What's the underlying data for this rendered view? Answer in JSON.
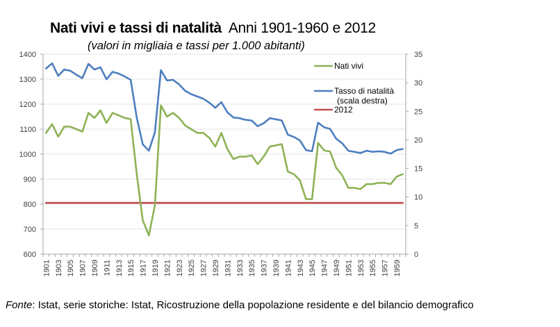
{
  "title": {
    "bold": "Nati vivi e tassi di natalità",
    "regular": "Anni 1901-1960 e 2012"
  },
  "subtitle": "(valori in migliaia e tassi per 1.000 abitanti)",
  "source": {
    "label": "Fonte",
    "text": ": Istat, serie storiche: Istat, Ricostruzione della popolazione residente e del bilancio demografico"
  },
  "chart_data": {
    "type": "line",
    "title": "Nati vivi e tassi di natalità Anni 1901-1960 e 2012",
    "subtitle": "(valori in migliaia e tassi per 1.000 abitanti)",
    "xlabel": "",
    "ylabel": "",
    "y2label": "",
    "ylim": [
      600,
      1400
    ],
    "y2lim": [
      0,
      35
    ],
    "yticks": [
      600,
      700,
      800,
      900,
      1000,
      1100,
      1200,
      1300,
      1400
    ],
    "y2ticks": [
      0,
      5,
      10,
      15,
      20,
      25,
      30,
      35
    ],
    "grid": "horizontal",
    "legend_position": "top-right",
    "x": [
      1901,
      1902,
      1903,
      1904,
      1905,
      1906,
      1907,
      1908,
      1909,
      1910,
      1911,
      1912,
      1913,
      1914,
      1915,
      1916,
      1917,
      1918,
      1919,
      1920,
      1921,
      1922,
      1923,
      1924,
      1925,
      1926,
      1927,
      1928,
      1929,
      1930,
      1931,
      1932,
      1933,
      1934,
      1935,
      1936,
      1937,
      1938,
      1939,
      1940,
      1941,
      1942,
      1943,
      1944,
      1945,
      1946,
      1947,
      1948,
      1949,
      1950,
      1951,
      1952,
      1953,
      1954,
      1955,
      1956,
      1957,
      1958,
      1959,
      1960
    ],
    "xtick_labels": [
      "1901",
      "1903",
      "1905",
      "1907",
      "1909",
      "1911",
      "1913",
      "1915",
      "1917",
      "1919",
      "1921",
      "1923",
      "1925",
      "1927",
      "1929",
      "1931",
      "1933",
      "1935",
      "1937",
      "1939",
      "1941",
      "1943",
      "1945",
      "1947",
      "1949",
      "1951",
      "1953",
      "1955",
      "1957",
      "1959"
    ],
    "series": [
      {
        "name": "Nati vivi",
        "axis": "left",
        "color": "#8db255",
        "values": [
          1085,
          1120,
          1070,
          1110,
          1110,
          1100,
          1090,
          1165,
          1145,
          1175,
          1125,
          1165,
          1155,
          1145,
          1140,
          920,
          735,
          675,
          795,
          1195,
          1150,
          1165,
          1145,
          1115,
          1100,
          1085,
          1085,
          1065,
          1030,
          1085,
          1020,
          980,
          990,
          990,
          995,
          960,
          990,
          1030,
          1035,
          1040,
          930,
          920,
          895,
          820,
          820,
          1045,
          1015,
          1010,
          945,
          915,
          865,
          865,
          860,
          880,
          880,
          885,
          885,
          880,
          910,
          920
        ]
      },
      {
        "name": "Tasso di natalità (scala destra)",
        "axis": "right",
        "color": "#4d7ebf",
        "values": [
          32.5,
          33.4,
          31.2,
          32.3,
          32.1,
          31.4,
          30.8,
          33.3,
          32.3,
          32.7,
          30.6,
          31.9,
          31.6,
          31.1,
          30.5,
          23.9,
          19.2,
          18.1,
          21.3,
          32.2,
          30.4,
          30.5,
          29.7,
          28.6,
          28.0,
          27.6,
          27.2,
          26.5,
          25.6,
          26.6,
          24.8,
          23.9,
          23.8,
          23.5,
          23.4,
          22.4,
          22.9,
          23.8,
          23.6,
          23.4,
          20.9,
          20.5,
          19.9,
          18.2,
          18.0,
          23.0,
          22.2,
          21.9,
          20.2,
          19.4,
          18.1,
          17.9,
          17.7,
          18.1,
          17.9,
          18.0,
          17.9,
          17.6,
          18.2,
          18.4
        ]
      },
      {
        "name": "2012",
        "axis": "left",
        "color": "#c0504d",
        "values": [
          805,
          805,
          805,
          805,
          805,
          805,
          805,
          805,
          805,
          805,
          805,
          805,
          805,
          805,
          805,
          805,
          805,
          805,
          805,
          805,
          805,
          805,
          805,
          805,
          805,
          805,
          805,
          805,
          805,
          805,
          805,
          805,
          805,
          805,
          805,
          805,
          805,
          805,
          805,
          805,
          805,
          805,
          805,
          805,
          805,
          805,
          805,
          805,
          805,
          805,
          805,
          805,
          805,
          805,
          805,
          805,
          805,
          805,
          805,
          805
        ]
      }
    ],
    "legend": [
      {
        "label": "Nati vivi",
        "color": "#8db255"
      },
      {
        "label": "Tasso di natalità",
        "label2": "(scala destra)",
        "color": "#4d7ebf"
      },
      {
        "label": "2012",
        "color": "#c0504d"
      }
    ]
  }
}
